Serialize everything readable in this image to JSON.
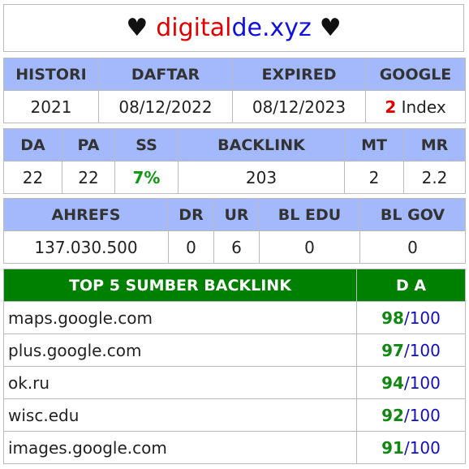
{
  "title": {
    "heart": "♥",
    "part1": "digital",
    "part2": "de.xyz"
  },
  "table1": {
    "headers": [
      "HISTORI",
      "DAFTAR",
      "EXPIRED",
      "GOOGLE"
    ],
    "histori": "2021",
    "daftar": "08/12/2022",
    "expired": "08/12/2023",
    "google_count": "2",
    "google_label": "Index"
  },
  "table2": {
    "headers": [
      "DA",
      "PA",
      "SS",
      "BACKLINK",
      "MT",
      "MR"
    ],
    "da": "22",
    "pa": "22",
    "ss": "7%",
    "backlink": "203",
    "mt": "2",
    "mr": "2.2"
  },
  "table3": {
    "headers": [
      "AHREFS",
      "DR",
      "UR",
      "BL EDU",
      "BL GOV"
    ],
    "ahrefs": "137.030.500",
    "dr": "0",
    "ur": "6",
    "bl_edu": "0",
    "bl_gov": "0"
  },
  "top5": {
    "header_source": "TOP 5 SUMBER BACKLINK",
    "header_da": "D A",
    "rows": [
      {
        "domain": "maps.google.com",
        "da": "98",
        "max": "100"
      },
      {
        "domain": "plus.google.com",
        "da": "97",
        "max": "100"
      },
      {
        "domain": "ok.ru",
        "da": "94",
        "max": "100"
      },
      {
        "domain": "wisc.edu",
        "da": "92",
        "max": "100"
      },
      {
        "domain": "images.google.com",
        "da": "91",
        "max": "100"
      }
    ]
  },
  "colors": {
    "header_blue": "#a4b9fb",
    "header_green": "#008000",
    "accent_red": "#e00000",
    "accent_blue": "#1010e0",
    "accent_green": "#119911"
  }
}
